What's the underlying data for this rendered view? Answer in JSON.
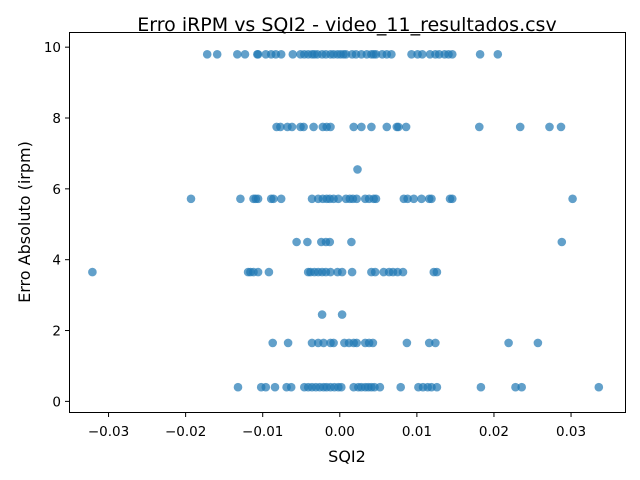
{
  "chart_data": {
    "type": "scatter",
    "title": "Erro iRPM vs SQI2 - video_11_resultados.csv",
    "xlabel": "SQI2",
    "ylabel": "Erro Absoluto (irpm)",
    "xlim": [
      -0.035,
      0.037
    ],
    "ylim": [
      -0.3,
      10.4
    ],
    "x_ticks": [
      -0.03,
      -0.02,
      -0.01,
      0.0,
      0.01,
      0.02,
      0.03
    ],
    "x_tick_labels": [
      "−0.03",
      "−0.02",
      "−0.01",
      "0.00",
      "0.01",
      "0.02",
      "0.03"
    ],
    "y_ticks": [
      0,
      2,
      4,
      6,
      8,
      10
    ],
    "y_tick_labels": [
      "0",
      "2",
      "4",
      "6",
      "8",
      "10"
    ],
    "grid": false,
    "legend": "none",
    "marker_color": "#1f77b4",
    "marker_alpha": 0.7,
    "series": [
      {
        "x": [
          -0.0172,
          -0.0159,
          -0.0133,
          -0.0123,
          -0.0107,
          -0.0106,
          -0.0096,
          -0.0089,
          -0.0083,
          -0.0076,
          -0.0061,
          -0.0051,
          -0.0046,
          -0.0041,
          -0.0036,
          -0.0033,
          -0.0029,
          -0.0023,
          -0.0018,
          -0.0012,
          -0.0008,
          -0.0003,
          0.0001,
          0.0005,
          0.0008,
          0.0016,
          0.0021,
          0.0028,
          0.0035,
          0.0041,
          0.0044,
          0.0047,
          0.0055,
          0.0061,
          0.0067,
          0.0093,
          0.0101,
          0.0107,
          0.0117,
          0.0124,
          0.0129,
          0.0136,
          0.0141,
          0.0146,
          0.0182,
          0.0205,
          -0.0082,
          -0.0077,
          -0.0068,
          -0.0062,
          -0.0051,
          -0.0047,
          -0.0034,
          -0.0022,
          -0.0017,
          -0.0012,
          0.0018,
          0.0028,
          0.0041,
          0.0061,
          0.0074,
          0.0076,
          0.0086,
          0.0181,
          0.0234,
          0.0272,
          0.0287,
          0.0023,
          -0.0193,
          -0.0129,
          -0.0112,
          -0.0109,
          -0.0106,
          -0.0089,
          -0.0086,
          -0.0076,
          -0.0036,
          -0.0028,
          -0.0022,
          -0.0017,
          -0.0013,
          -0.0008,
          -0.0002,
          0.0008,
          0.0013,
          0.0017,
          0.0022,
          0.0033,
          0.0038,
          0.0044,
          0.0047,
          0.0083,
          0.0088,
          0.0096,
          0.0106,
          0.0116,
          0.0119,
          0.0143,
          0.0146,
          0.0302,
          -0.0056,
          -0.0042,
          -0.0024,
          -0.0018,
          -0.0013,
          0.0015,
          0.0288,
          -0.0321,
          -0.0119,
          -0.0116,
          -0.0112,
          -0.0106,
          -0.0092,
          -0.0041,
          -0.0038,
          -0.0033,
          -0.0028,
          -0.0023,
          -0.0018,
          -0.0012,
          -0.0003,
          0.0003,
          0.0016,
          0.0041,
          0.0046,
          0.0057,
          0.0064,
          0.0069,
          0.0075,
          0.0082,
          0.0122,
          0.0126,
          -0.0023,
          0.0003,
          -0.0087,
          -0.0067,
          -0.0036,
          -0.0028,
          -0.0021,
          -0.0012,
          -0.0008,
          0.0006,
          0.0012,
          0.0018,
          0.0022,
          0.0033,
          0.0038,
          0.0043,
          0.0087,
          0.0116,
          0.0124,
          0.0219,
          0.0257,
          -0.0132,
          -0.0102,
          -0.0096,
          -0.0084,
          -0.0069,
          -0.0063,
          -0.0046,
          -0.0041,
          -0.0036,
          -0.0031,
          -0.0026,
          -0.0021,
          -0.0017,
          -0.0012,
          -0.0007,
          -0.0002,
          0.0002,
          0.0018,
          0.0024,
          0.0028,
          0.0033,
          0.0037,
          0.0041,
          0.0045,
          0.0052,
          0.0079,
          0.0102,
          0.0108,
          0.0114,
          0.0119,
          0.0126,
          0.0183,
          0.0228,
          0.0236,
          0.0336
        ],
        "y": [
          9.8,
          9.8,
          9.8,
          9.8,
          9.8,
          9.8,
          9.8,
          9.8,
          9.8,
          9.8,
          9.8,
          9.8,
          9.8,
          9.8,
          9.8,
          9.8,
          9.8,
          9.8,
          9.8,
          9.8,
          9.8,
          9.8,
          9.8,
          9.8,
          9.8,
          9.8,
          9.8,
          9.8,
          9.8,
          9.8,
          9.8,
          9.8,
          9.8,
          9.8,
          9.8,
          9.8,
          9.8,
          9.8,
          9.8,
          9.8,
          9.8,
          9.8,
          9.8,
          9.8,
          9.8,
          9.8,
          7.75,
          7.75,
          7.75,
          7.75,
          7.75,
          7.75,
          7.75,
          7.75,
          7.75,
          7.75,
          7.75,
          7.75,
          7.75,
          7.75,
          7.75,
          7.75,
          7.75,
          7.75,
          7.75,
          7.75,
          7.75,
          6.55,
          5.72,
          5.72,
          5.72,
          5.72,
          5.72,
          5.72,
          5.72,
          5.72,
          5.72,
          5.72,
          5.72,
          5.72,
          5.72,
          5.72,
          5.72,
          5.72,
          5.72,
          5.72,
          5.72,
          5.72,
          5.72,
          5.72,
          5.72,
          5.72,
          5.72,
          5.72,
          5.72,
          5.72,
          5.72,
          5.72,
          5.72,
          5.72,
          4.5,
          4.5,
          4.5,
          4.5,
          4.5,
          4.5,
          4.5,
          3.65,
          3.65,
          3.65,
          3.65,
          3.65,
          3.65,
          3.65,
          3.65,
          3.65,
          3.65,
          3.65,
          3.65,
          3.65,
          3.65,
          3.65,
          3.65,
          3.65,
          3.65,
          3.65,
          3.65,
          3.65,
          3.65,
          3.65,
          3.65,
          3.65,
          2.45,
          2.45,
          1.65,
          1.65,
          1.65,
          1.65,
          1.65,
          1.65,
          1.65,
          1.65,
          1.65,
          1.65,
          1.65,
          1.65,
          1.65,
          1.65,
          1.65,
          1.65,
          1.65,
          1.65,
          1.65,
          0.4,
          0.4,
          0.4,
          0.4,
          0.4,
          0.4,
          0.4,
          0.4,
          0.4,
          0.4,
          0.4,
          0.4,
          0.4,
          0.4,
          0.4,
          0.4,
          0.4,
          0.4,
          0.4,
          0.4,
          0.4,
          0.4,
          0.4,
          0.4,
          0.4,
          0.4,
          0.4,
          0.4,
          0.4,
          0.4,
          0.4,
          0.4,
          0.4,
          0.4,
          0.4
        ]
      }
    ]
  }
}
